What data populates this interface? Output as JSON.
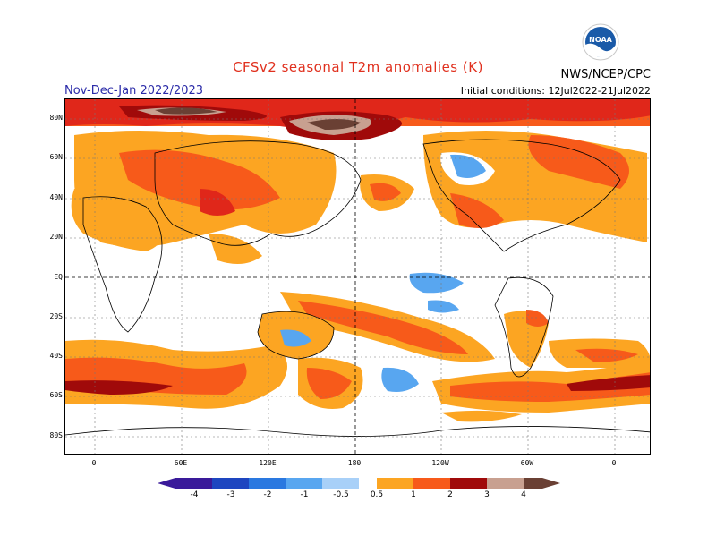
{
  "header": {
    "title": "CFSv2 seasonal T2m anomalies (K)",
    "period": "Nov-Dec-Jan 2022/2023",
    "init": "Initial conditions: 12Jul2022-21Jul2022",
    "agency": "NWS/NCEP/CPC",
    "logo_text": "NOAA"
  },
  "map": {
    "lat_labels": [
      "80N",
      "60N",
      "40N",
      "20N",
      "EQ",
      "20S",
      "40S",
      "60S",
      "80S"
    ],
    "lon_labels": [
      "0",
      "60E",
      "120E",
      "180",
      "120W",
      "60W",
      "0"
    ]
  },
  "colorbar": {
    "labels": [
      "-4",
      "-3",
      "-2",
      "-1",
      "-0.5",
      "0.5",
      "1",
      "2",
      "3",
      "4"
    ],
    "colors": [
      "#3a1a9a",
      "#1e46c0",
      "#2a78e0",
      "#58a6f0",
      "#a8d0f8",
      "#ffffff",
      "#fca522",
      "#f75a1a",
      "#e0271a",
      "#a00a0a",
      "#c8a090",
      "#6a4034"
    ]
  }
}
